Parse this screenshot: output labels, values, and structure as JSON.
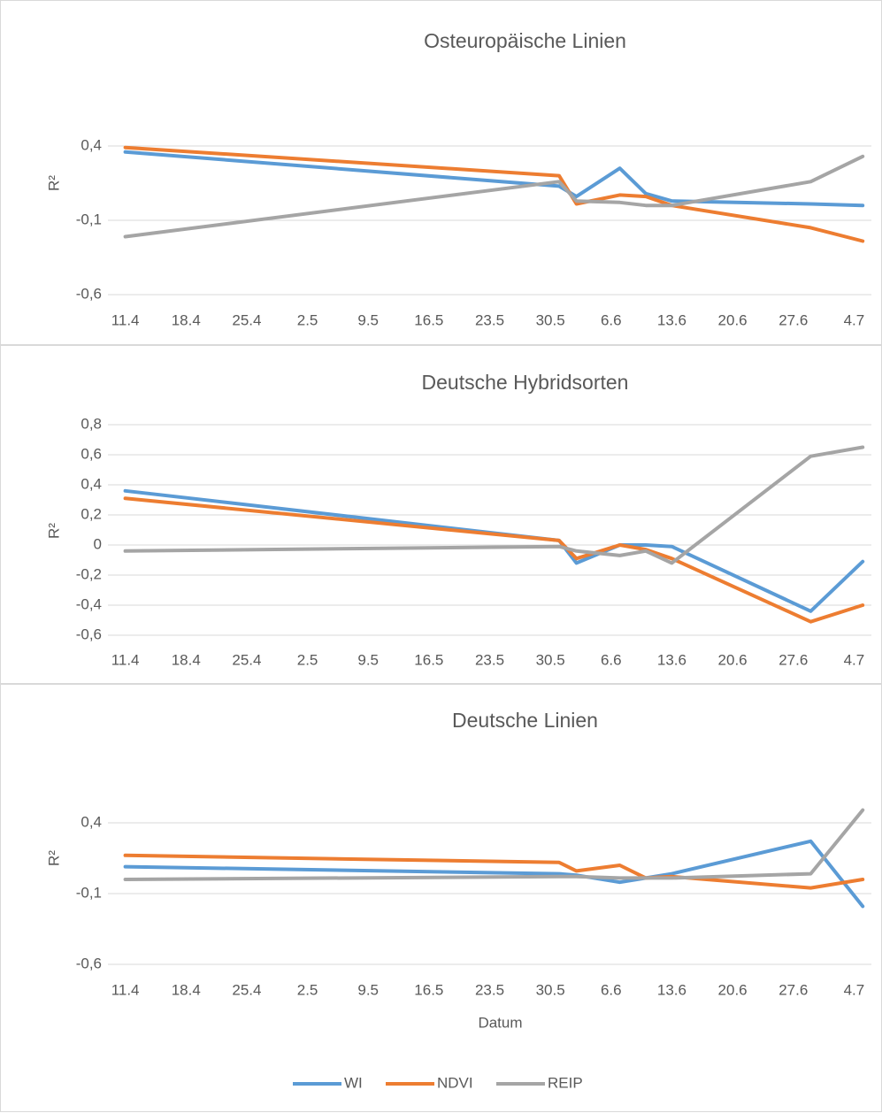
{
  "chart_data": [
    {
      "type": "line",
      "title": "Osteuropäische Linien",
      "y_label": "R²",
      "x": [
        "11.4",
        "31.5",
        "2.6",
        "7.6",
        "10.6",
        "13.6",
        "29.6",
        "5.7"
      ],
      "xlim": [
        "9.4",
        "6.7"
      ],
      "xticks": [
        "11.4",
        "18.4",
        "25.4",
        "2.5",
        "9.5",
        "16.5",
        "23.5",
        "30.5",
        "6.6",
        "13.6",
        "20.6",
        "27.6",
        "4.7"
      ],
      "ylim": [
        -0.6,
        0.9
      ],
      "yticks": [
        {
          "value": -0.6,
          "label": "-0,6"
        },
        {
          "value": -0.1,
          "label": "-0,1"
        },
        {
          "value": 0.4,
          "label": "0,4"
        }
      ],
      "grid": true,
      "series": [
        {
          "color": "#5b9bd5",
          "values": [
            0.36,
            0.13,
            0.06,
            0.25,
            0.08,
            0.03,
            0.01,
            0.0
          ]
        },
        {
          "color": "#ed7d31",
          "values": [
            0.39,
            0.2,
            0.01,
            0.07,
            0.06,
            0.0,
            -0.15,
            -0.24
          ]
        },
        {
          "color": "#a5a5a5",
          "values": [
            -0.21,
            0.16,
            0.03,
            0.02,
            0.0,
            0.0,
            0.16,
            0.33
          ]
        }
      ]
    },
    {
      "type": "line",
      "title": "Deutsche Hybridsorten",
      "y_label": "R²",
      "x": [
        "11.4",
        "31.5",
        "2.6",
        "7.6",
        "10.6",
        "13.6",
        "29.6",
        "5.7"
      ],
      "xlim": [
        "9.4",
        "6.7"
      ],
      "xticks": [
        "11.4",
        "18.4",
        "25.4",
        "2.5",
        "9.5",
        "16.5",
        "23.5",
        "30.5",
        "6.6",
        "13.6",
        "20.6",
        "27.6",
        "4.7"
      ],
      "ylim": [
        -0.6,
        0.8
      ],
      "yticks": [
        {
          "value": -0.6,
          "label": "-0,6"
        },
        {
          "value": -0.4,
          "label": "-0,4"
        },
        {
          "value": -0.2,
          "label": "-0,2"
        },
        0,
        {
          "value": 0.2,
          "label": "0,2"
        },
        {
          "value": 0.4,
          "label": "0,4"
        },
        {
          "value": 0.6,
          "label": "0,6"
        },
        {
          "value": 0.8,
          "label": "0,8"
        }
      ],
      "grid": true,
      "series": [
        {
          "color": "#5b9bd5",
          "values": [
            0.36,
            0.03,
            -0.12,
            0.0,
            0.0,
            -0.01,
            -0.44,
            -0.11
          ]
        },
        {
          "color": "#ed7d31",
          "values": [
            0.31,
            0.03,
            -0.09,
            0.0,
            -0.03,
            -0.09,
            -0.51,
            -0.4
          ]
        },
        {
          "color": "#a5a5a5",
          "values": [
            -0.04,
            -0.01,
            -0.04,
            -0.07,
            -0.04,
            -0.12,
            0.59,
            0.65
          ]
        }
      ]
    },
    {
      "type": "line",
      "title": "Deutsche Linien",
      "y_label": "R²",
      "x_label": "Datum",
      "x": [
        "11.4",
        "31.5",
        "2.6",
        "7.6",
        "10.6",
        "13.6",
        "29.6",
        "5.7"
      ],
      "xlim": [
        "9.4",
        "6.7"
      ],
      "xticks": [
        "11.4",
        "18.4",
        "25.4",
        "2.5",
        "9.5",
        "16.5",
        "23.5",
        "30.5",
        "6.6",
        "13.6",
        "20.6",
        "27.6",
        "4.7"
      ],
      "ylim": [
        -0.6,
        0.9
      ],
      "yticks": [
        {
          "value": -0.6,
          "label": "-0,6"
        },
        {
          "value": -0.1,
          "label": "-0,1"
        },
        {
          "value": 0.4,
          "label": "0,4"
        }
      ],
      "grid": true,
      "legend": "bottom",
      "series": [
        {
          "name": "WI",
          "color": "#5b9bd5",
          "values": [
            0.09,
            0.04,
            0.03,
            -0.02,
            0.01,
            0.04,
            0.27,
            -0.19
          ]
        },
        {
          "name": "NDVI",
          "color": "#ed7d31",
          "values": [
            0.17,
            0.12,
            0.06,
            0.1,
            0.01,
            0.02,
            -0.06,
            0.0
          ]
        },
        {
          "name": "REIP",
          "color": "#a5a5a5",
          "values": [
            0.0,
            0.02,
            0.02,
            0.01,
            0.01,
            0.01,
            0.04,
            0.49
          ]
        }
      ]
    }
  ]
}
